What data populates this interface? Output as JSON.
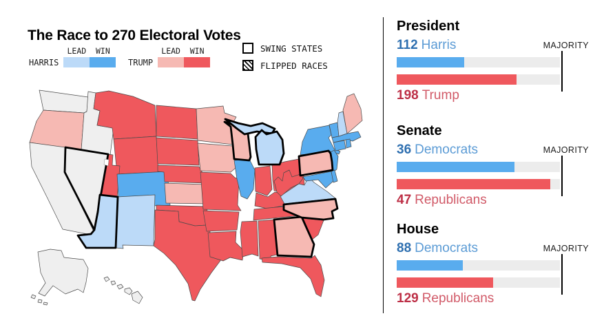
{
  "title": "The Race to 270 Electoral Votes",
  "legend": {
    "lead_label": "LEAD",
    "win_label": "WIN",
    "harris": {
      "label": "HARRIS",
      "lead_color": "#bcdaf8",
      "win_color": "#59acee"
    },
    "trump": {
      "label": "TRUMP",
      "lead_color": "#f6b9b3",
      "win_color": "#ef585d"
    },
    "swing_label": "SWING STATES",
    "flipped_label": "FLIPPED RACES"
  },
  "colors": {
    "no_result": "#efefef",
    "state_border": "#4a4a4a",
    "swing_border": "#000000",
    "track": "#ececec",
    "dem_bar": "#59acee",
    "rep_bar": "#ef585d",
    "dem_value": "#2e6fb0",
    "dem_name": "#5b9bd5",
    "rep_value": "#bd2f46",
    "rep_name": "#d15a68"
  },
  "map": {
    "states": [
      {
        "id": "WA",
        "result": "none",
        "swing": false
      },
      {
        "id": "OR",
        "result": "trump_lead",
        "swing": false
      },
      {
        "id": "CA",
        "result": "none",
        "swing": false
      },
      {
        "id": "ID",
        "result": "none",
        "swing": false
      },
      {
        "id": "NV",
        "result": "none",
        "swing": true
      },
      {
        "id": "MT",
        "result": "trump_win",
        "swing": false
      },
      {
        "id": "WY",
        "result": "trump_win",
        "swing": false
      },
      {
        "id": "UT",
        "result": "trump_win",
        "swing": false
      },
      {
        "id": "CO",
        "result": "harris_win",
        "swing": false
      },
      {
        "id": "AZ",
        "result": "harris_lead",
        "swing": true
      },
      {
        "id": "NM",
        "result": "harris_lead",
        "swing": false
      },
      {
        "id": "ND",
        "result": "trump_win",
        "swing": false
      },
      {
        "id": "SD",
        "result": "trump_win",
        "swing": false
      },
      {
        "id": "NE",
        "result": "trump_win",
        "swing": false
      },
      {
        "id": "KS",
        "result": "trump_lead",
        "swing": false
      },
      {
        "id": "OK",
        "result": "trump_win",
        "swing": false
      },
      {
        "id": "TX",
        "result": "trump_win",
        "swing": false
      },
      {
        "id": "MN",
        "result": "trump_lead",
        "swing": false
      },
      {
        "id": "IA",
        "result": "trump_lead",
        "swing": false
      },
      {
        "id": "MO",
        "result": "trump_win",
        "swing": false
      },
      {
        "id": "AR",
        "result": "trump_win",
        "swing": false
      },
      {
        "id": "LA",
        "result": "trump_win",
        "swing": false
      },
      {
        "id": "WI",
        "result": "trump_lead",
        "swing": true
      },
      {
        "id": "IL",
        "result": "harris_win",
        "swing": false
      },
      {
        "id": "MI",
        "result": "harris_lead",
        "swing": true
      },
      {
        "id": "IN",
        "result": "trump_win",
        "swing": false
      },
      {
        "id": "OH",
        "result": "trump_win",
        "swing": false
      },
      {
        "id": "KY",
        "result": "trump_win",
        "swing": false
      },
      {
        "id": "TN",
        "result": "trump_win",
        "swing": false
      },
      {
        "id": "MS",
        "result": "trump_win",
        "swing": false
      },
      {
        "id": "AL",
        "result": "trump_win",
        "swing": false
      },
      {
        "id": "GA",
        "result": "trump_lead",
        "swing": true
      },
      {
        "id": "FL",
        "result": "trump_win",
        "swing": false
      },
      {
        "id": "SC",
        "result": "trump_win",
        "swing": false
      },
      {
        "id": "NC",
        "result": "trump_lead",
        "swing": true
      },
      {
        "id": "VA",
        "result": "harris_lead",
        "swing": false
      },
      {
        "id": "WV",
        "result": "trump_win",
        "swing": false
      },
      {
        "id": "PA",
        "result": "trump_lead",
        "swing": true
      },
      {
        "id": "NY",
        "result": "harris_win",
        "swing": false
      },
      {
        "id": "NJ",
        "result": "harris_win",
        "swing": false
      },
      {
        "id": "MD",
        "result": "harris_win",
        "swing": false
      },
      {
        "id": "DE",
        "result": "harris_win",
        "swing": false
      },
      {
        "id": "VT",
        "result": "harris_win",
        "swing": false
      },
      {
        "id": "NH",
        "result": "harris_lead",
        "swing": false
      },
      {
        "id": "ME",
        "result": "trump_lead",
        "swing": false
      },
      {
        "id": "MA",
        "result": "harris_win",
        "swing": false
      },
      {
        "id": "CT",
        "result": "harris_win",
        "swing": false
      },
      {
        "id": "RI",
        "result": "harris_win",
        "swing": false
      },
      {
        "id": "AK",
        "result": "none",
        "swing": false
      },
      {
        "id": "HI",
        "result": "none",
        "swing": false
      }
    ]
  },
  "panels": [
    {
      "title": "President",
      "majority_label": "MAJORITY",
      "majority": 270,
      "dem": {
        "value": 112,
        "label": "Harris"
      },
      "rep": {
        "value": 198,
        "label": "Trump"
      }
    },
    {
      "title": "Senate",
      "majority_label": "MAJORITY",
      "majority": 50,
      "dem": {
        "value": 36,
        "label": "Democrats"
      },
      "rep": {
        "value": 47,
        "label": "Republicans"
      }
    },
    {
      "title": "House",
      "majority_label": "MAJORITY",
      "majority": 218,
      "dem": {
        "value": 88,
        "label": "Democrats"
      },
      "rep": {
        "value": 129,
        "label": "Republicans"
      }
    }
  ],
  "chart_data": [
    {
      "type": "choropleth",
      "title": "The Race to 270 Electoral Votes",
      "legend": [
        "HARRIS LEAD",
        "HARRIS WIN",
        "TRUMP LEAD",
        "TRUMP WIN",
        "SWING STATES",
        "FLIPPED RACES"
      ],
      "states": {
        "WA": "none",
        "OR": "trump_lead",
        "CA": "none",
        "ID": "none",
        "NV": "none (swing)",
        "MT": "trump_win",
        "WY": "trump_win",
        "UT": "trump_win",
        "CO": "harris_win",
        "AZ": "harris_lead (swing)",
        "NM": "harris_lead",
        "ND": "trump_win",
        "SD": "trump_win",
        "NE": "trump_win",
        "KS": "trump_lead",
        "OK": "trump_win",
        "TX": "trump_win",
        "MN": "trump_lead",
        "IA": "trump_lead",
        "MO": "trump_win",
        "AR": "trump_win",
        "LA": "trump_win",
        "WI": "trump_lead (swing)",
        "IL": "harris_win",
        "MI": "harris_lead (swing)",
        "IN": "trump_win",
        "OH": "trump_win",
        "KY": "trump_win",
        "TN": "trump_win",
        "MS": "trump_win",
        "AL": "trump_win",
        "GA": "trump_lead (swing)",
        "FL": "trump_win",
        "SC": "trump_win",
        "NC": "trump_lead (swing)",
        "VA": "harris_lead",
        "WV": "trump_win",
        "PA": "trump_lead (swing)",
        "NY": "harris_win",
        "NJ": "harris_win",
        "MD": "harris_win",
        "DE": "harris_win",
        "VT": "harris_win",
        "NH": "harris_lead",
        "ME": "trump_lead",
        "MA": "harris_win",
        "CT": "harris_win",
        "RI": "harris_win",
        "AK": "none",
        "HI": "none"
      }
    },
    {
      "type": "bar",
      "title": "President",
      "categories": [
        "Harris",
        "Trump"
      ],
      "values": [
        112,
        198
      ],
      "xlim": [
        0,
        270
      ],
      "annotations": [
        "MAJORITY"
      ]
    },
    {
      "type": "bar",
      "title": "Senate",
      "categories": [
        "Democrats",
        "Republicans"
      ],
      "values": [
        36,
        47
      ],
      "xlim": [
        0,
        50
      ],
      "annotations": [
        "MAJORITY"
      ]
    },
    {
      "type": "bar",
      "title": "House",
      "categories": [
        "Democrats",
        "Republicans"
      ],
      "values": [
        88,
        129
      ],
      "xlim": [
        0,
        218
      ],
      "annotations": [
        "MAJORITY"
      ]
    }
  ]
}
